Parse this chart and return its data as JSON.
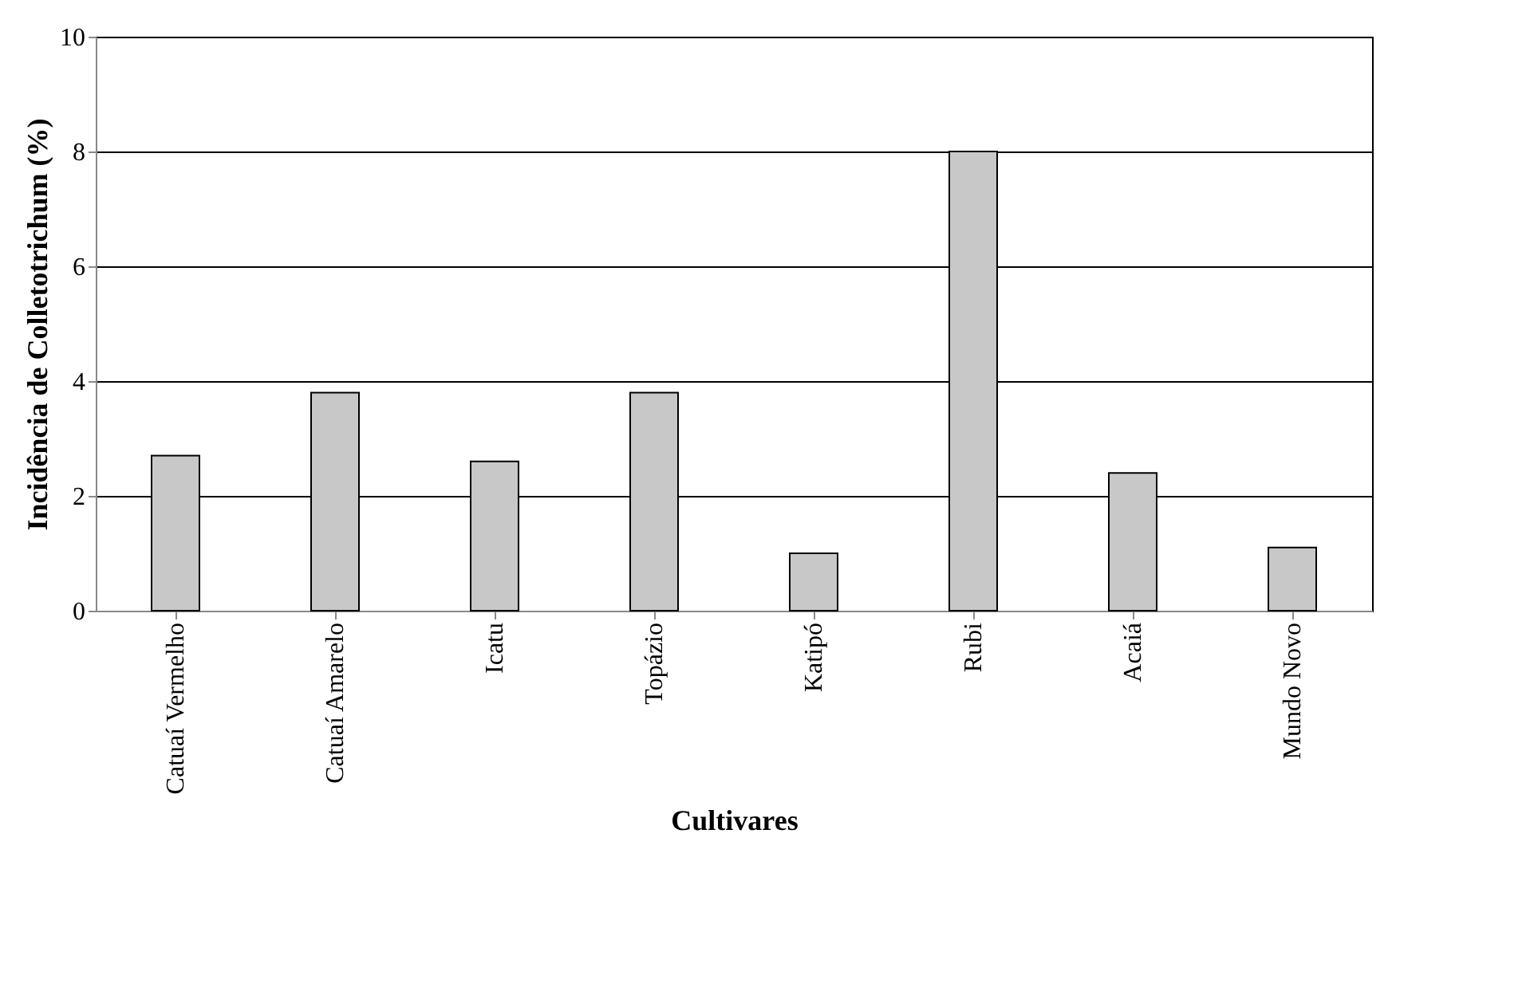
{
  "chart_data": {
    "type": "bar",
    "categories": [
      "Catuaí  Vermelho",
      "Catuaí  Amarelo",
      "Icatu",
      "Topázio",
      "Katipó",
      "Rubi",
      "Acaiá",
      "Mundo Novo"
    ],
    "values": [
      2.7,
      3.8,
      2.6,
      3.8,
      1.0,
      8.0,
      2.4,
      1.1
    ],
    "color": "#c8c8c8",
    "xlabel": "Cultivares",
    "ylabel": "Incidência de Colletotrichum (%)",
    "ylim": [
      0,
      10
    ],
    "yticks": [
      0,
      2,
      4,
      6,
      8,
      10
    ],
    "grid": "y"
  }
}
